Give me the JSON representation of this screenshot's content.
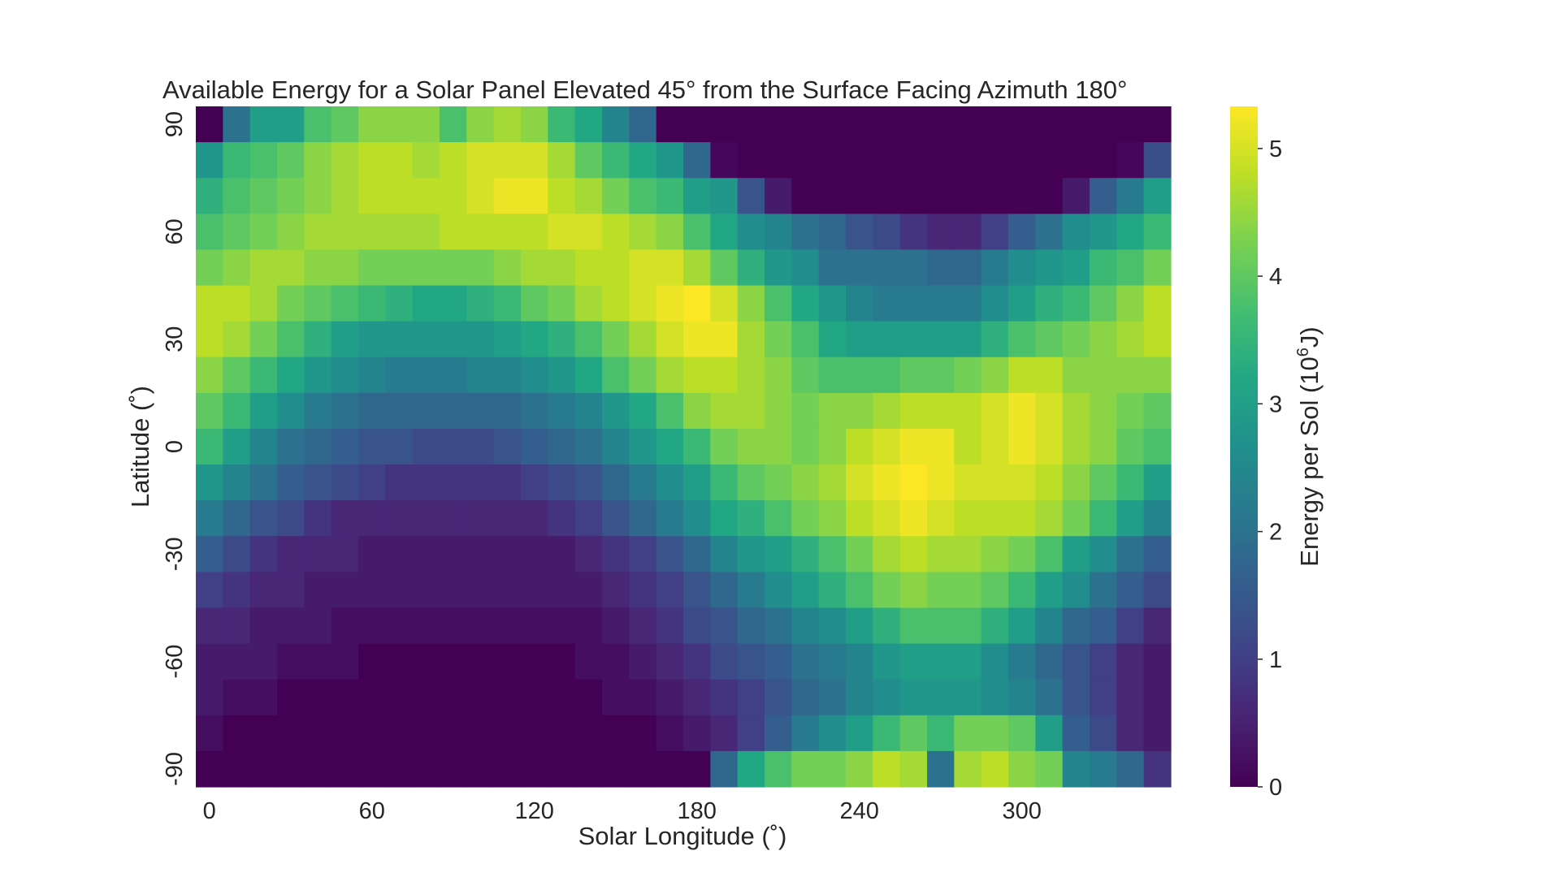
{
  "chart_data": {
    "type": "heatmap",
    "title": "Available Energy for a Solar Panel Elevated 45° from the Surface Facing Azimuth 180°",
    "xlabel": "Solar Longitude (˚)",
    "ylabel": "Latitude (˚)",
    "colorbar_label_prefix": "Energy per Sol (10",
    "colorbar_label_exp": "6",
    "colorbar_label_suffix": "J)",
    "colormap": "viridis",
    "vmin": 0,
    "vmax": 5.33,
    "x_tick_labels": [
      "0",
      "60",
      "120",
      "180",
      "240",
      "300"
    ],
    "x_tick_values": [
      0,
      60,
      120,
      180,
      240,
      300
    ],
    "y_tick_labels": [
      "90",
      "60",
      "30",
      "0",
      "-30",
      "-60",
      "-90"
    ],
    "y_tick_values": [
      90,
      60,
      30,
      0,
      -30,
      -60,
      -90
    ],
    "colorbar_ticks": [
      "0",
      "1",
      "2",
      "3",
      "4",
      "5"
    ],
    "colorbar_tick_values": [
      0,
      1,
      2,
      3,
      4,
      5
    ],
    "x_centers": [
      0,
      10,
      20,
      30,
      40,
      50,
      60,
      70,
      80,
      90,
      100,
      110,
      120,
      130,
      140,
      150,
      160,
      170,
      180,
      190,
      200,
      210,
      220,
      230,
      240,
      250,
      260,
      270,
      280,
      290,
      300,
      310,
      320,
      330,
      340,
      350
    ],
    "y_centers": [
      90,
      80,
      70,
      60,
      50,
      40,
      30,
      20,
      10,
      0,
      -10,
      -20,
      -30,
      -40,
      -50,
      -60,
      -70,
      -80,
      -90
    ],
    "values": [
      [
        0.0,
        2.0,
        3.0,
        3.0,
        3.8,
        4.0,
        4.4,
        4.4,
        4.4,
        3.8,
        4.4,
        4.6,
        4.4,
        3.6,
        3.2,
        2.4,
        1.8,
        0.0,
        0.0,
        0.0,
        0.0,
        0.0,
        0.0,
        0.0,
        0.0,
        0.0,
        0.0,
        0.0,
        0.0,
        0.0,
        0.0,
        0.0,
        0.0,
        0.0,
        0.0,
        0.0
      ],
      [
        2.8,
        3.6,
        3.8,
        4.0,
        4.4,
        4.6,
        4.8,
        4.8,
        4.6,
        4.8,
        5.0,
        5.0,
        5.0,
        4.6,
        4.0,
        3.6,
        3.2,
        2.8,
        1.8,
        0.1,
        0.0,
        0.0,
        0.0,
        0.0,
        0.0,
        0.0,
        0.0,
        0.0,
        0.0,
        0.0,
        0.0,
        0.0,
        0.0,
        0.0,
        0.1,
        1.3
      ],
      [
        3.4,
        3.8,
        4.0,
        4.2,
        4.4,
        4.6,
        4.8,
        4.8,
        4.8,
        4.8,
        5.0,
        5.2,
        5.2,
        4.8,
        4.6,
        4.2,
        3.8,
        3.6,
        3.0,
        2.8,
        1.4,
        0.4,
        0.0,
        0.0,
        0.0,
        0.0,
        0.0,
        0.0,
        0.0,
        0.0,
        0.0,
        0.0,
        0.4,
        1.6,
        2.2,
        3.0
      ],
      [
        3.8,
        4.0,
        4.2,
        4.4,
        4.6,
        4.6,
        4.6,
        4.6,
        4.6,
        4.8,
        4.8,
        4.8,
        4.8,
        5.0,
        5.0,
        4.8,
        4.6,
        4.4,
        3.8,
        3.2,
        2.6,
        2.4,
        2.0,
        1.8,
        1.4,
        1.2,
        0.8,
        0.6,
        0.6,
        1.0,
        1.6,
        2.0,
        2.6,
        2.8,
        3.2,
        3.6
      ],
      [
        4.2,
        4.4,
        4.6,
        4.6,
        4.4,
        4.4,
        4.2,
        4.2,
        4.2,
        4.2,
        4.2,
        4.4,
        4.6,
        4.6,
        4.8,
        4.8,
        5.0,
        5.0,
        4.6,
        4.0,
        3.4,
        2.8,
        2.6,
        2.0,
        2.0,
        2.0,
        2.0,
        1.8,
        1.8,
        2.2,
        2.6,
        2.8,
        3.0,
        3.6,
        3.8,
        4.2
      ],
      [
        4.8,
        4.8,
        4.6,
        4.2,
        4.0,
        3.8,
        3.6,
        3.4,
        3.2,
        3.2,
        3.4,
        3.6,
        4.0,
        4.2,
        4.6,
        4.8,
        5.0,
        5.2,
        5.33,
        5.0,
        4.4,
        3.8,
        3.2,
        2.8,
        2.4,
        2.2,
        2.2,
        2.2,
        2.2,
        2.6,
        3.0,
        3.4,
        3.6,
        4.0,
        4.4,
        4.8
      ],
      [
        4.8,
        4.6,
        4.2,
        3.8,
        3.4,
        3.0,
        2.8,
        2.8,
        2.8,
        2.8,
        2.8,
        3.0,
        3.2,
        3.4,
        3.8,
        4.2,
        4.6,
        5.0,
        5.2,
        5.2,
        4.6,
        4.2,
        3.8,
        3.2,
        3.0,
        3.0,
        3.0,
        3.0,
        3.0,
        3.4,
        3.8,
        4.0,
        4.2,
        4.4,
        4.6,
        4.8
      ],
      [
        4.4,
        4.0,
        3.6,
        3.2,
        2.8,
        2.6,
        2.4,
        2.2,
        2.2,
        2.2,
        2.4,
        2.4,
        2.6,
        2.8,
        3.2,
        3.8,
        4.2,
        4.6,
        4.8,
        4.8,
        4.6,
        4.4,
        4.0,
        3.8,
        3.8,
        3.8,
        4.0,
        4.0,
        4.2,
        4.4,
        4.8,
        4.8,
        4.4,
        4.4,
        4.4,
        4.4
      ],
      [
        4.0,
        3.6,
        3.0,
        2.6,
        2.2,
        2.0,
        1.8,
        1.8,
        1.8,
        1.8,
        1.8,
        1.8,
        2.0,
        2.2,
        2.4,
        2.8,
        3.2,
        3.8,
        4.4,
        4.6,
        4.6,
        4.4,
        4.2,
        4.4,
        4.4,
        4.6,
        4.8,
        4.8,
        4.8,
        5.0,
        5.2,
        5.0,
        4.6,
        4.4,
        4.2,
        4.0
      ],
      [
        3.6,
        3.0,
        2.4,
        2.0,
        1.8,
        1.6,
        1.4,
        1.4,
        1.2,
        1.2,
        1.2,
        1.4,
        1.6,
        1.8,
        2.0,
        2.4,
        2.8,
        3.2,
        3.6,
        4.2,
        4.4,
        4.4,
        4.2,
        4.4,
        4.8,
        5.0,
        5.2,
        5.2,
        4.8,
        5.0,
        5.2,
        5.0,
        4.6,
        4.4,
        4.0,
        3.8
      ],
      [
        2.8,
        2.4,
        2.0,
        1.6,
        1.4,
        1.2,
        1.0,
        0.8,
        0.8,
        0.8,
        0.8,
        0.8,
        1.0,
        1.2,
        1.4,
        1.8,
        2.2,
        2.6,
        3.0,
        3.6,
        4.0,
        4.2,
        4.4,
        4.6,
        5.0,
        5.2,
        5.33,
        5.2,
        5.0,
        5.0,
        5.0,
        4.8,
        4.4,
        4.0,
        3.6,
        3.0
      ],
      [
        2.2,
        1.8,
        1.4,
        1.2,
        0.8,
        0.6,
        0.6,
        0.6,
        0.6,
        0.6,
        0.6,
        0.6,
        0.6,
        0.8,
        1.0,
        1.4,
        1.8,
        2.2,
        2.6,
        3.2,
        3.4,
        3.8,
        4.2,
        4.4,
        4.8,
        5.0,
        5.2,
        5.0,
        4.8,
        4.8,
        4.8,
        4.6,
        4.2,
        3.6,
        3.0,
        2.4
      ],
      [
        1.6,
        1.2,
        0.8,
        0.6,
        0.6,
        0.6,
        0.4,
        0.4,
        0.4,
        0.4,
        0.4,
        0.4,
        0.4,
        0.4,
        0.6,
        0.8,
        1.0,
        1.4,
        1.8,
        2.4,
        2.8,
        3.0,
        3.4,
        3.8,
        4.2,
        4.6,
        4.8,
        4.6,
        4.6,
        4.4,
        4.2,
        3.8,
        3.0,
        2.6,
        2.0,
        1.6
      ],
      [
        1.0,
        0.8,
        0.6,
        0.6,
        0.4,
        0.4,
        0.4,
        0.4,
        0.4,
        0.4,
        0.4,
        0.4,
        0.4,
        0.4,
        0.4,
        0.6,
        0.8,
        1.0,
        1.4,
        1.8,
        2.2,
        2.6,
        3.0,
        3.4,
        3.8,
        4.2,
        4.4,
        4.2,
        4.2,
        4.0,
        3.6,
        3.0,
        2.6,
        2.0,
        1.6,
        1.2
      ],
      [
        0.6,
        0.6,
        0.4,
        0.4,
        0.4,
        0.2,
        0.2,
        0.2,
        0.2,
        0.2,
        0.2,
        0.2,
        0.2,
        0.2,
        0.2,
        0.4,
        0.6,
        0.8,
        1.2,
        1.4,
        1.8,
        2.0,
        2.4,
        2.6,
        3.0,
        3.4,
        3.8,
        3.8,
        3.8,
        3.4,
        3.0,
        2.4,
        1.8,
        1.6,
        1.0,
        0.6
      ],
      [
        0.4,
        0.4,
        0.4,
        0.2,
        0.2,
        0.2,
        0.0,
        0.0,
        0.0,
        0.0,
        0.0,
        0.0,
        0.0,
        0.0,
        0.2,
        0.2,
        0.4,
        0.6,
        0.8,
        1.2,
        1.4,
        1.6,
        2.0,
        2.2,
        2.4,
        2.8,
        3.0,
        3.0,
        3.0,
        2.6,
        2.2,
        1.8,
        1.4,
        1.0,
        0.6,
        0.4
      ],
      [
        0.4,
        0.2,
        0.2,
        0.0,
        0.0,
        0.0,
        0.0,
        0.0,
        0.0,
        0.0,
        0.0,
        0.0,
        0.0,
        0.0,
        0.0,
        0.2,
        0.2,
        0.4,
        0.6,
        0.8,
        1.0,
        1.4,
        1.8,
        2.0,
        2.4,
        2.6,
        2.8,
        2.8,
        2.8,
        2.6,
        2.4,
        2.0,
        1.4,
        1.0,
        0.6,
        0.4
      ],
      [
        0.2,
        0.0,
        0.0,
        0.0,
        0.0,
        0.0,
        0.0,
        0.0,
        0.0,
        0.0,
        0.0,
        0.0,
        0.0,
        0.0,
        0.0,
        0.0,
        0.0,
        0.2,
        0.4,
        0.6,
        1.0,
        1.6,
        2.2,
        2.6,
        3.0,
        3.6,
        4.0,
        3.6,
        4.2,
        4.2,
        4.0,
        3.0,
        1.6,
        1.2,
        0.6,
        0.4
      ],
      [
        0.0,
        0.0,
        0.0,
        0.0,
        0.0,
        0.0,
        0.0,
        0.0,
        0.0,
        0.0,
        0.0,
        0.0,
        0.0,
        0.0,
        0.0,
        0.0,
        0.0,
        0.0,
        0.0,
        1.8,
        3.2,
        3.8,
        4.2,
        4.2,
        4.4,
        4.8,
        4.6,
        2.0,
        4.6,
        4.8,
        4.4,
        4.2,
        2.4,
        2.2,
        1.8,
        0.8
      ]
    ]
  }
}
